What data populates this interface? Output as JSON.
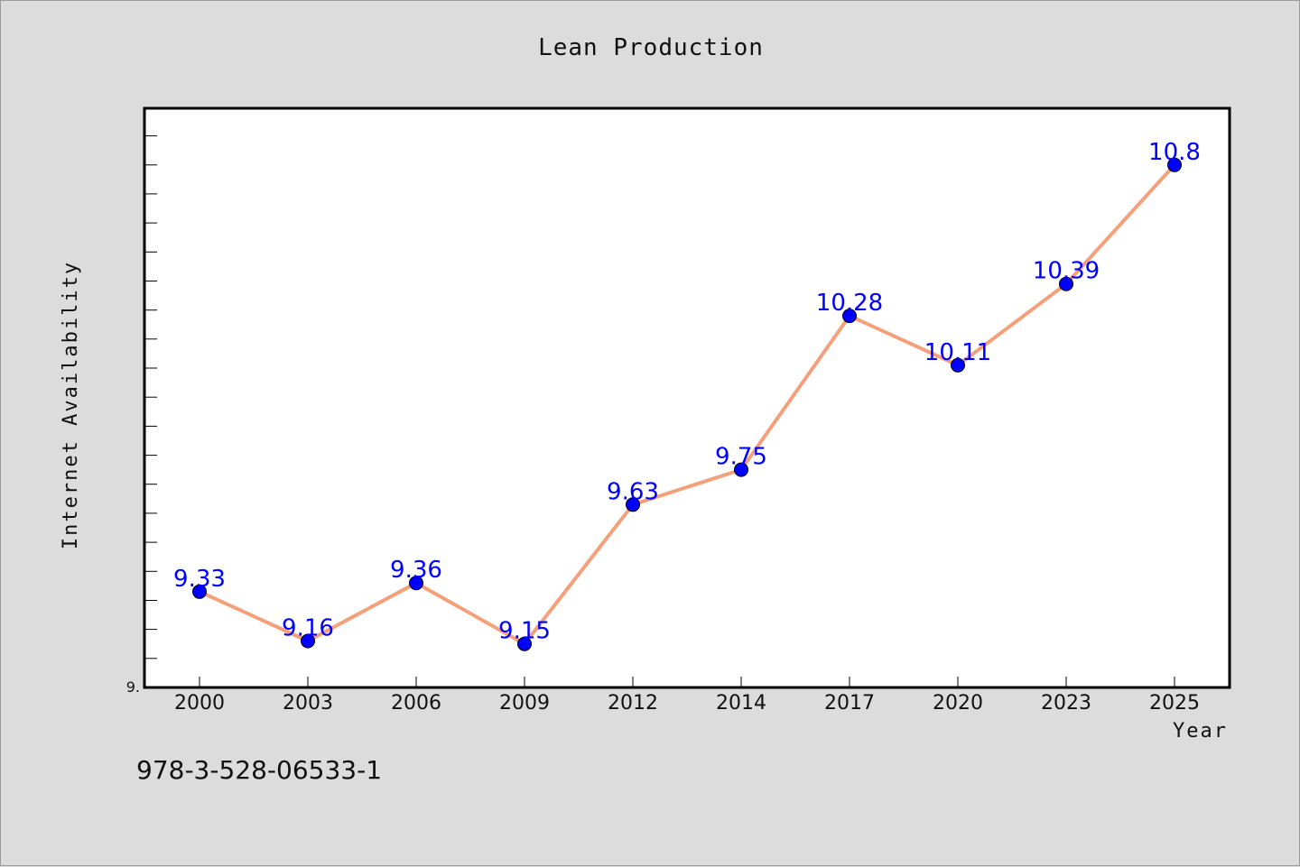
{
  "chart_data": {
    "type": "line",
    "title": "Lean Production",
    "xlabel": "Year",
    "ylabel": "Internet Availability",
    "ylim": [
      9.0,
      10.995
    ],
    "y_min_tick_label": "9.",
    "x": [
      "2000",
      "2003",
      "2006",
      "2009",
      "2012",
      "2014",
      "2017",
      "2020",
      "2023",
      "2025"
    ],
    "series": [
      {
        "values": [
          9.33,
          9.16,
          9.36,
          9.15,
          9.63,
          9.75,
          10.28,
          10.11,
          10.39,
          10.8
        ],
        "labels": [
          "9.33",
          "9.16",
          "9.36",
          "9.15",
          "9.63",
          "9.75",
          "10.28",
          "10.11",
          "10.39",
          "10.8"
        ],
        "line_color": "#f4a07a",
        "marker_color": "#0000ff"
      }
    ],
    "grid": false,
    "legend": "none"
  },
  "footer": {
    "isbn": "978-3-528-06533-1"
  },
  "colors": {
    "background": "#dcdcdc",
    "plot_background": "#ffffff",
    "label_color": "#0000ff"
  }
}
